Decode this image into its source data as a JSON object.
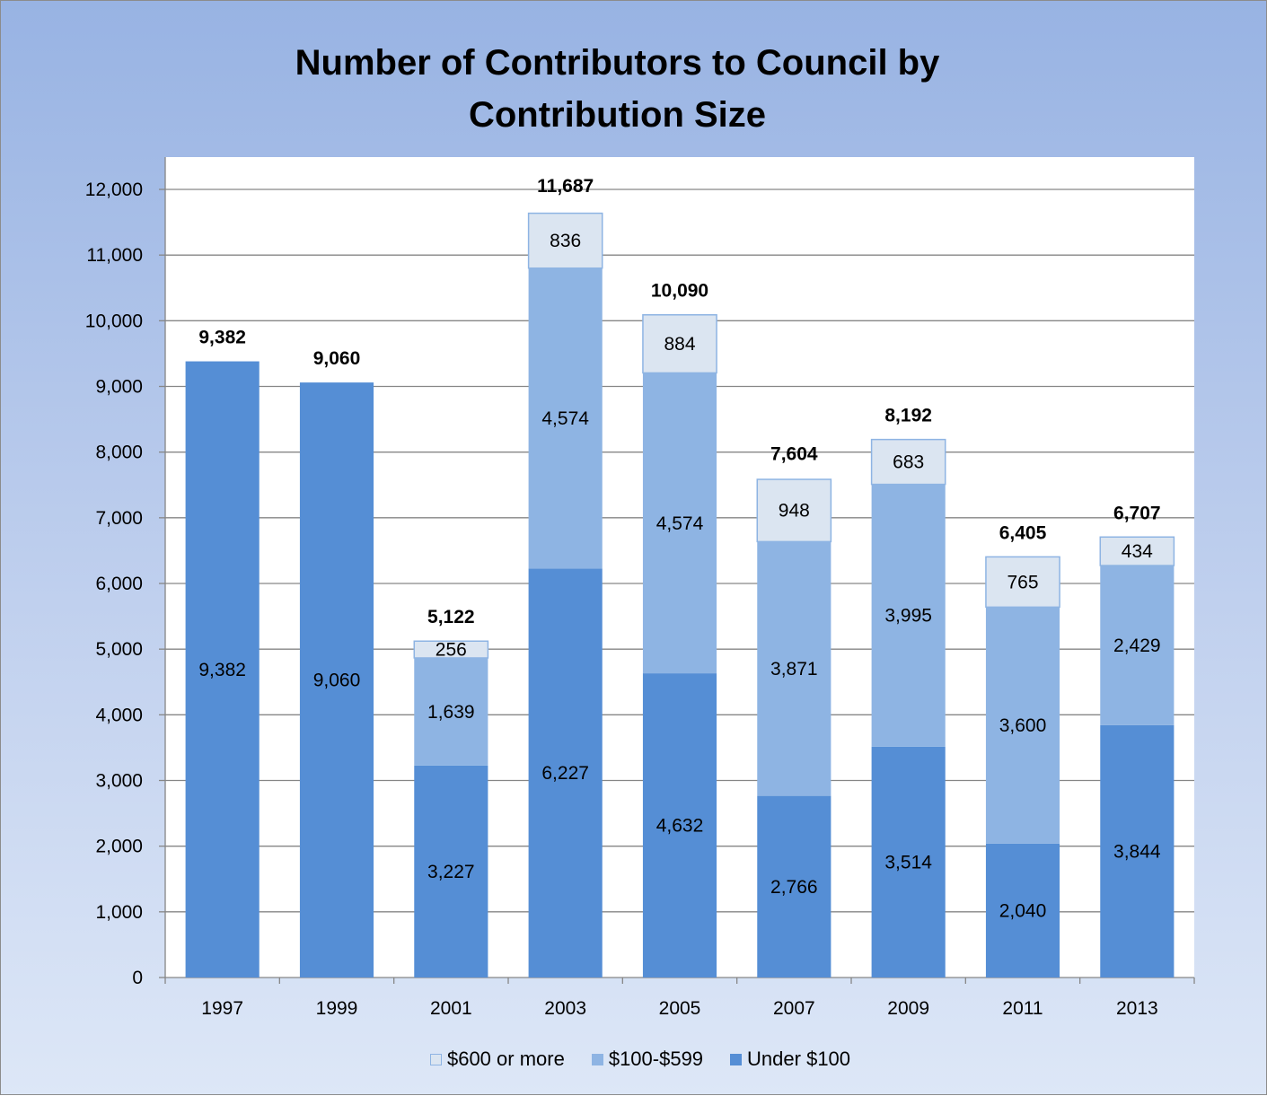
{
  "chart_data": {
    "type": "bar",
    "stacked": true,
    "title_lines": [
      "Number of Contributors to Council by",
      "Contribution Size"
    ],
    "categories": [
      "1997",
      "1999",
      "2001",
      "2003",
      "2005",
      "2007",
      "2009",
      "2011",
      "2013"
    ],
    "series": [
      {
        "name": "Under $100",
        "color": "#558ed5",
        "values": [
          9382,
          9060,
          3227,
          6227,
          4632,
          2766,
          3514,
          2040,
          3844
        ],
        "labels": [
          "9,382",
          "9,060",
          "3,227",
          "6,227",
          "4,632",
          "2,766",
          "3,514",
          "2,040",
          "3,844"
        ]
      },
      {
        "name": "$100-$599",
        "color": "#8eb4e3",
        "values": [
          null,
          null,
          1639,
          4574,
          4574,
          3871,
          3995,
          3600,
          2429
        ],
        "labels": [
          "",
          "",
          "1,639",
          "4,574",
          "4,574",
          "3,871",
          "3,995",
          "3,600",
          "2,429"
        ]
      },
      {
        "name": "$600 or more",
        "color": "#dbe5f1",
        "values": [
          null,
          null,
          256,
          836,
          884,
          948,
          683,
          765,
          434
        ],
        "labels": [
          "",
          "",
          "256",
          "836",
          "884",
          "948",
          "683",
          "765",
          "434"
        ]
      }
    ],
    "totals": [
      9382,
      9060,
      5122,
      11687,
      10090,
      7604,
      8192,
      6405,
      6707
    ],
    "total_labels": [
      "9,382",
      "9,060",
      "5,122",
      "11,687",
      "10,090",
      "7,604",
      "8,192",
      "6,405",
      "6,707"
    ],
    "y_ticks": [
      0,
      1000,
      2000,
      3000,
      4000,
      5000,
      6000,
      7000,
      8000,
      9000,
      10000,
      11000,
      12000
    ],
    "y_tick_labels": [
      "0",
      "1,000",
      "2,000",
      "3,000",
      "4,000",
      "5,000",
      "6,000",
      "7,000",
      "8,000",
      "9,000",
      "10,000",
      "11,000",
      "12,000"
    ],
    "ylim": [
      0,
      12000
    ],
    "grid": true,
    "legend_position": "bottom",
    "legend_order": [
      "$600 or more",
      "$100-$599",
      "Under $100"
    ],
    "xlabel": "",
    "ylabel": ""
  }
}
